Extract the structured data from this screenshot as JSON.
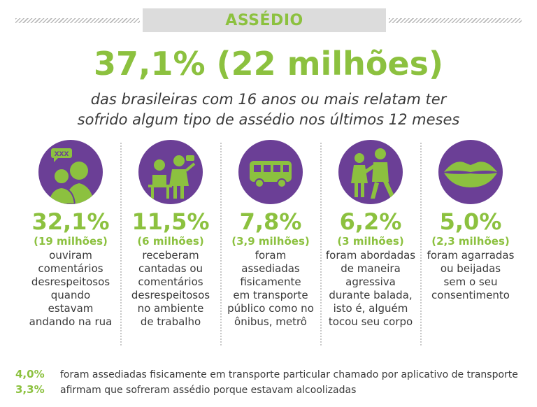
{
  "header": {
    "section_label": "ASSÉDIO"
  },
  "headline": "37,1% (22 milhões)",
  "subline": [
    "das brasileiras com 16 anos ou mais relatam ter",
    "sofrido algum tipo de assédio nos últimos 12 meses"
  ],
  "colors": {
    "green": "#8cc13f",
    "purple": "#6b3f96",
    "text": "#3a3a3a"
  },
  "stats": [
    {
      "icon": "street-comments-icon",
      "bubble_text": "XXX",
      "percent": "32,1%",
      "millions": "(19 milhões)",
      "lines": [
        "ouviram",
        "comentários",
        "desrespeitosos",
        "quando",
        "estavam",
        "andando na rua"
      ]
    },
    {
      "icon": "workplace-icon",
      "percent": "11,5%",
      "millions": "(6 milhões)",
      "lines": [
        "receberam",
        "cantadas ou",
        "comentários",
        "desrespeitosos",
        "no ambiente",
        "de trabalho"
      ]
    },
    {
      "icon": "bus-icon",
      "percent": "7,8%",
      "millions": "(3,9 milhões)",
      "lines": [
        "foram",
        "assediadas",
        "fisicamente",
        "em transporte",
        "público como no",
        "ônibus, metrô"
      ]
    },
    {
      "icon": "aggressive-approach-icon",
      "percent": "6,2%",
      "millions": "(3 milhões)",
      "lines": [
        "foram abordadas",
        "de maneira",
        "agressiva",
        "durante balada,",
        "isto é, alguém",
        "tocou seu corpo"
      ]
    },
    {
      "icon": "lips-icon",
      "percent": "5,0%",
      "millions": "(2,3 milhões)",
      "lines": [
        "foram agarradas",
        "ou beijadas",
        "sem o seu",
        "consentimento"
      ]
    }
  ],
  "footnotes": [
    {
      "percent": "4,0%",
      "text": "foram assediadas fisicamente em transporte particular chamado por aplicativo de transporte"
    },
    {
      "percent": "3,3%",
      "text": "afirmam que sofreram assédio porque estavam alcoolizadas"
    }
  ]
}
